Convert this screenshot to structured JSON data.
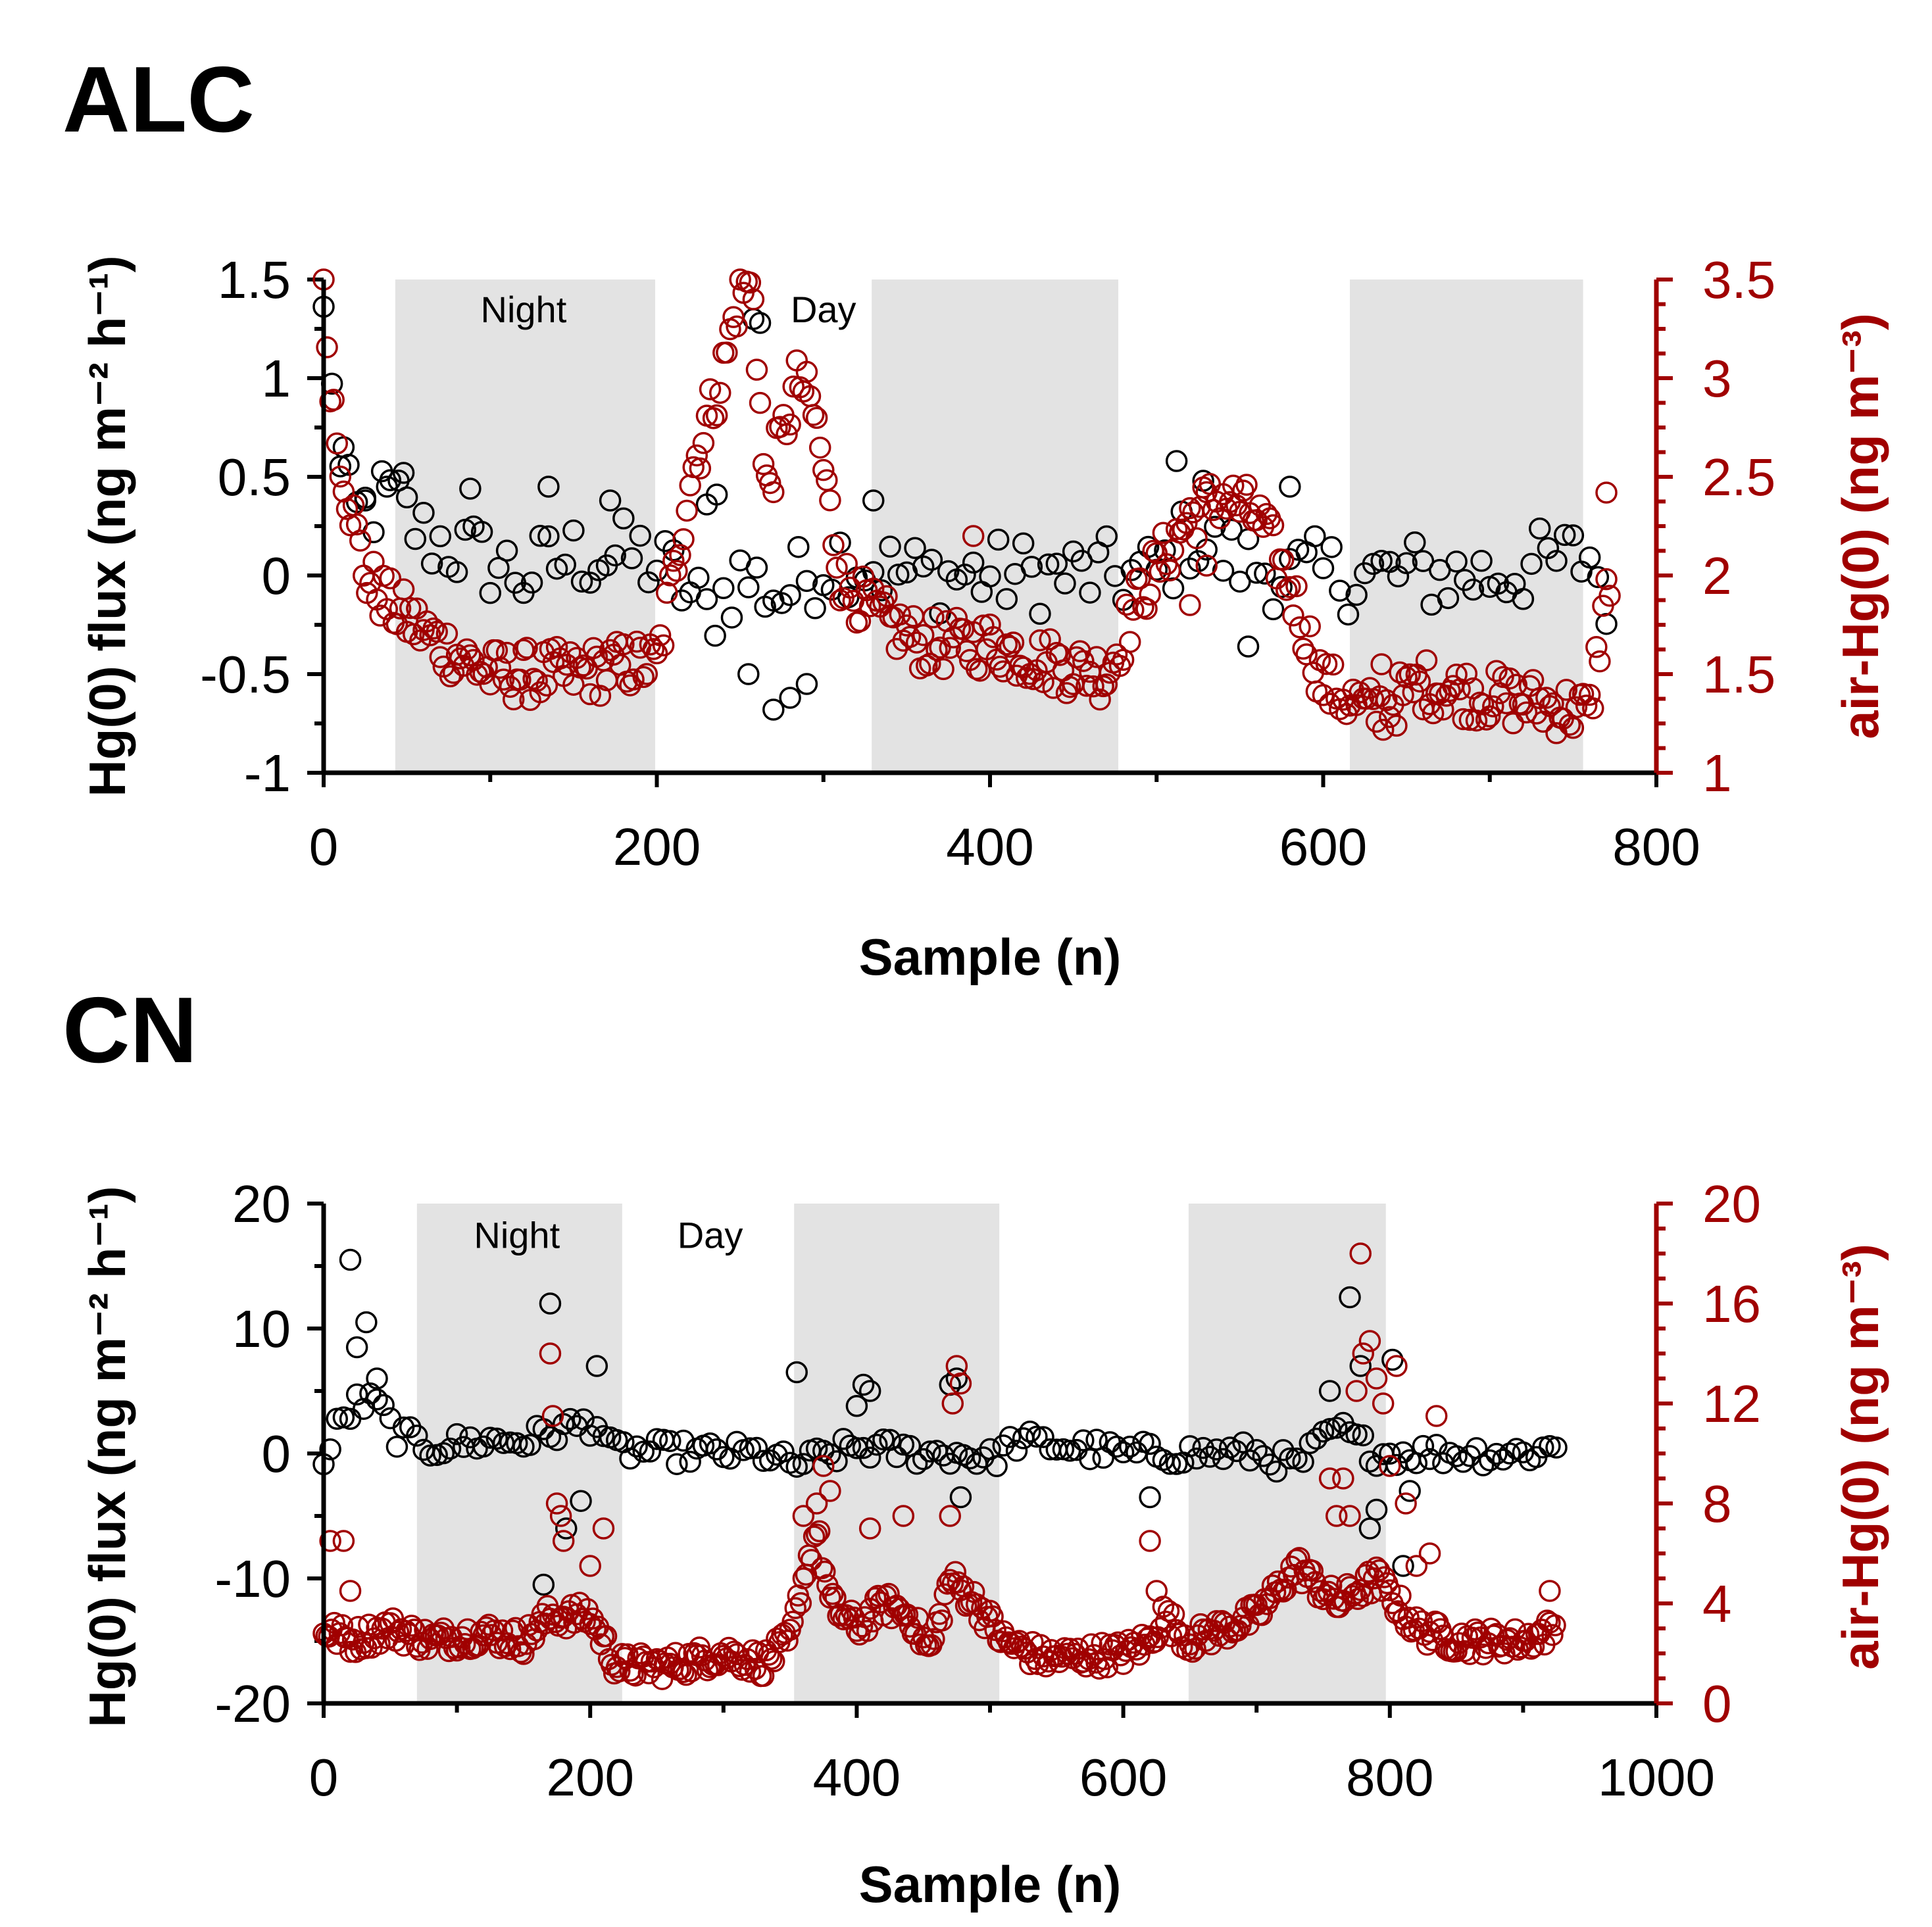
{
  "chart_data": [
    {
      "type": "scatter",
      "title": "ALC",
      "xlabel": "Sample (n)",
      "ylabel": "Hg(0) flux (ng m⁻² h⁻¹)",
      "y2label": "air-Hg(0) (ng m⁻³)",
      "xlim": [
        0,
        800
      ],
      "ylim": [
        -1,
        1.5
      ],
      "y2lim": [
        1,
        3.5
      ],
      "xticks": [
        0,
        200,
        400,
        600,
        800
      ],
      "xtick_labels": [
        "0",
        "200",
        "400",
        "600",
        "800"
      ],
      "yticks": [
        -1,
        -0.5,
        0,
        0.5,
        1,
        1.5
      ],
      "ytick_labels": [
        "-1",
        "-0.5",
        "0",
        "0.5",
        "1",
        "1.5"
      ],
      "y2ticks": [
        1,
        1.5,
        2,
        2.5,
        3,
        3.5
      ],
      "y2tick_labels": [
        "1",
        "1.5",
        "2",
        "2.5",
        "3",
        "3.5"
      ],
      "night_periods": [
        [
          43,
          199
        ],
        [
          329,
          477
        ],
        [
          616,
          756
        ]
      ],
      "annotations": [
        {
          "text": "Night",
          "x": 120,
          "y": 1.35
        },
        {
          "text": "Day",
          "x": 300,
          "y": 1.35
        }
      ],
      "series": [
        {
          "name": "Hg(0) flux",
          "axis": "left",
          "color": "#000000",
          "keypoints": [
            [
              0,
              1.3
            ],
            [
              4,
              1.2
            ],
            [
              8,
              0.6
            ],
            [
              12,
              0.4
            ],
            [
              20,
              0.3
            ],
            [
              40,
              0.4
            ],
            [
              60,
              0.2
            ],
            [
              90,
              0.1
            ],
            [
              120,
              0.0
            ],
            [
              150,
              0.1
            ],
            [
              190,
              0.1
            ],
            [
              210,
              0.0
            ],
            [
              230,
              -0.2
            ],
            [
              250,
              0.0
            ],
            [
              275,
              -0.1
            ],
            [
              290,
              0.0
            ],
            [
              310,
              0.1
            ],
            [
              350,
              0.0
            ],
            [
              400,
              0.0
            ],
            [
              450,
              0.0
            ],
            [
              500,
              0.0
            ],
            [
              520,
              0.2
            ],
            [
              540,
              0.1
            ],
            [
              580,
              0.0
            ],
            [
              620,
              0.0
            ],
            [
              700,
              0.0
            ],
            [
              760,
              0.1
            ],
            [
              770,
              -0.1
            ]
          ],
          "spread": 0.2,
          "outliers": [
            [
              12,
              0.65
            ],
            [
              25,
              0.38
            ],
            [
              38,
              0.45
            ],
            [
              48,
              0.52
            ],
            [
              88,
              0.44
            ],
            [
              135,
              0.45
            ],
            [
              172,
              0.38
            ],
            [
              230,
              0.36
            ],
            [
              236,
              0.41
            ],
            [
              258,
              1.3
            ],
            [
              262,
              1.28
            ],
            [
              270,
              -0.68
            ],
            [
              280,
              -0.62
            ],
            [
              290,
              -0.55
            ],
            [
              255,
              -0.5
            ],
            [
              330,
              0.38
            ],
            [
              512,
              0.58
            ],
            [
              528,
              0.48
            ],
            [
              555,
              -0.36
            ],
            [
              580,
              0.45
            ]
          ]
        },
        {
          "name": "air-Hg(0)",
          "axis": "right",
          "color": "#a00000",
          "keypoints": [
            [
              0,
              3.4
            ],
            [
              3,
              3.1
            ],
            [
              8,
              2.7
            ],
            [
              15,
              2.4
            ],
            [
              25,
              2.0
            ],
            [
              40,
              1.85
            ],
            [
              70,
              1.65
            ],
            [
              100,
              1.5
            ],
            [
              150,
              1.5
            ],
            [
              185,
              1.55
            ],
            [
              200,
              1.55
            ],
            [
              210,
              2.0
            ],
            [
              220,
              2.5
            ],
            [
              240,
              3.05
            ],
            [
              250,
              3.45
            ],
            [
              258,
              3.45
            ],
            [
              265,
              2.4
            ],
            [
              275,
              2.7
            ],
            [
              285,
              3.0
            ],
            [
              295,
              2.8
            ],
            [
              310,
              2.0
            ],
            [
              330,
              1.8
            ],
            [
              360,
              1.65
            ],
            [
              400,
              1.65
            ],
            [
              440,
              1.55
            ],
            [
              470,
              1.5
            ],
            [
              490,
              1.9
            ],
            [
              505,
              2.1
            ],
            [
              520,
              2.3
            ],
            [
              540,
              2.4
            ],
            [
              560,
              2.3
            ],
            [
              580,
              1.95
            ],
            [
              600,
              1.45
            ],
            [
              630,
              1.3
            ],
            [
              660,
              1.45
            ],
            [
              690,
              1.4
            ],
            [
              730,
              1.35
            ],
            [
              760,
              1.3
            ],
            [
              768,
              1.8
            ],
            [
              772,
              2.0
            ]
          ],
          "spread": 0.14,
          "outliers": [
            [
              390,
              2.2
            ],
            [
              635,
              1.55
            ],
            [
              770,
              2.42
            ],
            [
              520,
              1.85
            ],
            [
              530,
              2.05
            ]
          ]
        }
      ]
    },
    {
      "type": "scatter",
      "title": "CN",
      "xlabel": "Sample (n)",
      "ylabel": "Hg(0) flux (ng m⁻² h⁻¹)",
      "y2label": "air-Hg(0) (ng m⁻³)",
      "xlim": [
        0,
        1000
      ],
      "ylim": [
        -20,
        20
      ],
      "y2lim": [
        0,
        20
      ],
      "xticks": [
        0,
        200,
        400,
        600,
        800,
        1000
      ],
      "xtick_labels": [
        "0",
        "200",
        "400",
        "600",
        "800",
        "1000"
      ],
      "yticks": [
        -20,
        -10,
        0,
        10,
        20
      ],
      "ytick_labels": [
        "-20",
        "-10",
        "0",
        "10",
        "20"
      ],
      "y2ticks": [
        0,
        4,
        8,
        12,
        16,
        20
      ],
      "y2tick_labels": [
        "0",
        "4",
        "8",
        "12",
        "16",
        "20"
      ],
      "night_periods": [
        [
          70,
          224
        ],
        [
          353,
          507
        ],
        [
          649,
          797
        ]
      ],
      "annotations": [
        {
          "text": "Night",
          "x": 145,
          "y": 17.5
        },
        {
          "text": "Day",
          "x": 290,
          "y": 17.5
        }
      ],
      "series": [
        {
          "name": "Hg(0) flux",
          "axis": "left",
          "color": "#000000",
          "keypoints": [
            [
              0,
              -1.0
            ],
            [
              10,
              2.0
            ],
            [
              25,
              4.0
            ],
            [
              40,
              4.0
            ],
            [
              55,
              1.5
            ],
            [
              80,
              0.5
            ],
            [
              120,
              1.0
            ],
            [
              150,
              1.0
            ],
            [
              180,
              2.0
            ],
            [
              205,
              2.5
            ],
            [
              215,
              0.3
            ],
            [
              300,
              0.0
            ],
            [
              330,
              0.0
            ],
            [
              350,
              -1.0
            ],
            [
              400,
              0.5
            ],
            [
              450,
              0.0
            ],
            [
              480,
              0.0
            ],
            [
              500,
              -0.5
            ],
            [
              520,
              1.0
            ],
            [
              600,
              0.0
            ],
            [
              650,
              0.0
            ],
            [
              700,
              0.0
            ],
            [
              730,
              -1.0
            ],
            [
              760,
              2.0
            ],
            [
              790,
              0.0
            ],
            [
              830,
              0.0
            ],
            [
              900,
              0.0
            ],
            [
              925,
              0.5
            ]
          ],
          "spread": 1.0,
          "outliers": [
            [
              20,
              15.5
            ],
            [
              25,
              8.5
            ],
            [
              32,
              10.5
            ],
            [
              40,
              6.0
            ],
            [
              170,
              12.0
            ],
            [
              165,
              -10.5
            ],
            [
              182,
              -6.0
            ],
            [
              193,
              -3.8
            ],
            [
              205,
              7.0
            ],
            [
              355,
              6.5
            ],
            [
              400,
              3.8
            ],
            [
              405,
              5.5
            ],
            [
              410,
              5.0
            ],
            [
              470,
              5.5
            ],
            [
              475,
              6.0
            ],
            [
              478,
              -3.5
            ],
            [
              620,
              -3.5
            ],
            [
              755,
              5.0
            ],
            [
              770,
              12.5
            ],
            [
              778,
              7.0
            ],
            [
              785,
              -6.0
            ],
            [
              790,
              -4.5
            ],
            [
              802,
              7.5
            ],
            [
              810,
              -9.0
            ],
            [
              815,
              -3.0
            ]
          ]
        },
        {
          "name": "air-Hg(0)",
          "axis": "right",
          "color": "#a00000",
          "keypoints": [
            [
              0,
              3.0
            ],
            [
              20,
              2.5
            ],
            [
              50,
              3.0
            ],
            [
              80,
              2.5
            ],
            [
              120,
              2.8
            ],
            [
              150,
              2.5
            ],
            [
              170,
              3.5
            ],
            [
              200,
              3.5
            ],
            [
              220,
              1.5
            ],
            [
              260,
              1.5
            ],
            [
              300,
              2.0
            ],
            [
              330,
              1.6
            ],
            [
              350,
              2.5
            ],
            [
              360,
              5.0
            ],
            [
              370,
              7.0
            ],
            [
              380,
              4.0
            ],
            [
              400,
              3.0
            ],
            [
              420,
              4.0
            ],
            [
              440,
              3.5
            ],
            [
              455,
              2.0
            ],
            [
              470,
              5.0
            ],
            [
              490,
              4.0
            ],
            [
              510,
              2.5
            ],
            [
              540,
              1.8
            ],
            [
              600,
              2.0
            ],
            [
              620,
              2.5
            ],
            [
              630,
              3.5
            ],
            [
              650,
              2.5
            ],
            [
              700,
              3.5
            ],
            [
              730,
              5.5
            ],
            [
              760,
              4.0
            ],
            [
              790,
              5.0
            ],
            [
              820,
              3.0
            ],
            [
              850,
              2.5
            ],
            [
              900,
              2.5
            ],
            [
              925,
              3.0
            ]
          ],
          "spread": 0.55,
          "outliers": [
            [
              5,
              6.5
            ],
            [
              15,
              6.5
            ],
            [
              20,
              4.5
            ],
            [
              170,
              14.0
            ],
            [
              172,
              11.5
            ],
            [
              175,
              8.0
            ],
            [
              178,
              7.5
            ],
            [
              180,
              6.5
            ],
            [
              200,
              5.5
            ],
            [
              210,
              7.0
            ],
            [
              360,
              7.5
            ],
            [
              370,
              8.0
            ],
            [
              375,
              9.5
            ],
            [
              380,
              8.5
            ],
            [
              410,
              7.0
            ],
            [
              435,
              7.5
            ],
            [
              470,
              7.5
            ],
            [
              472,
              12.0
            ],
            [
              475,
              13.5
            ],
            [
              478,
              12.8
            ],
            [
              620,
              6.5
            ],
            [
              625,
              4.5
            ],
            [
              755,
              9.0
            ],
            [
              760,
              7.5
            ],
            [
              765,
              9.0
            ],
            [
              770,
              7.5
            ],
            [
              775,
              12.5
            ],
            [
              778,
              18.0
            ],
            [
              780,
              14.0
            ],
            [
              785,
              14.5
            ],
            [
              790,
              13.0
            ],
            [
              795,
              12.0
            ],
            [
              800,
              9.5
            ],
            [
              805,
              13.5
            ],
            [
              812,
              8.0
            ],
            [
              820,
              5.5
            ],
            [
              830,
              6.0
            ],
            [
              835,
              11.5
            ],
            [
              920,
              4.5
            ]
          ]
        }
      ]
    }
  ]
}
